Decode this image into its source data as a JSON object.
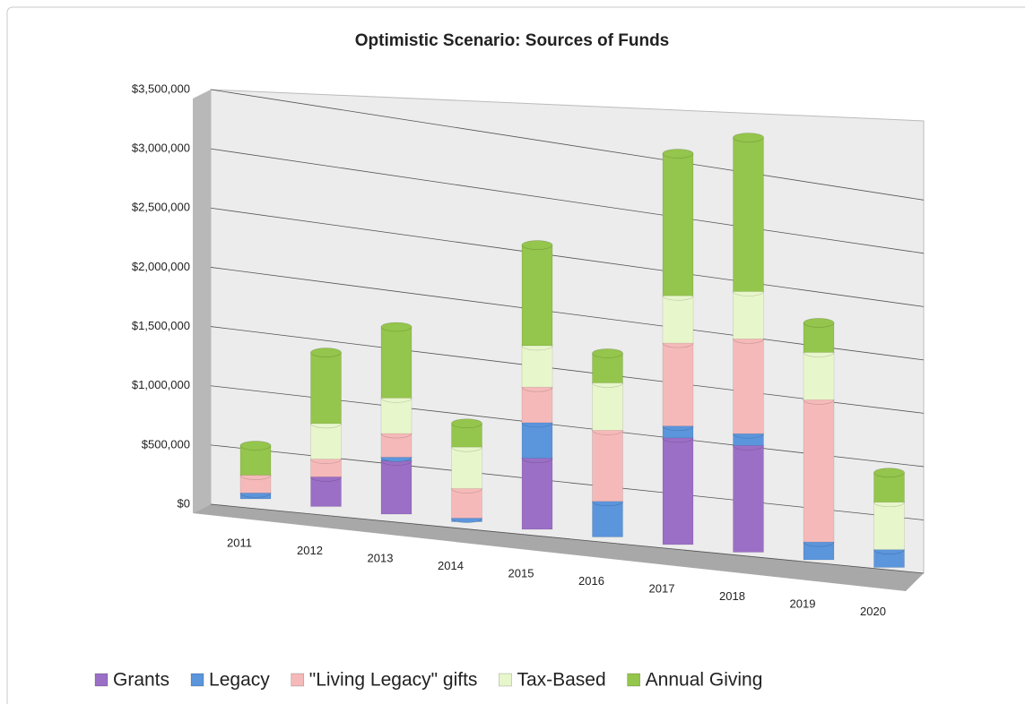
{
  "chart_data": {
    "type": "bar",
    "stacked": true,
    "title": "Optimistic Scenario:  Sources of Funds",
    "categories": [
      "2011",
      "2012",
      "2013",
      "2014",
      "2015",
      "2016",
      "2017",
      "2018",
      "2019",
      "2020"
    ],
    "series": [
      {
        "name": "Grants",
        "color": "#9b6fc6",
        "values": [
          0,
          250000,
          450000,
          0,
          600000,
          0,
          900000,
          900000,
          0,
          0
        ]
      },
      {
        "name": "Legacy",
        "color": "#5b95dc",
        "values": [
          50000,
          0,
          30000,
          30000,
          300000,
          300000,
          100000,
          100000,
          150000,
          150000
        ]
      },
      {
        "name": "\"Living Legacy\" gifts",
        "color": "#f6b9b9",
        "values": [
          150000,
          150000,
          200000,
          250000,
          300000,
          600000,
          700000,
          800000,
          1200000,
          0
        ]
      },
      {
        "name": "Tax-Based",
        "color": "#e8f6cc",
        "values": [
          0,
          300000,
          300000,
          350000,
          350000,
          400000,
          400000,
          400000,
          400000,
          400000
        ]
      },
      {
        "name": "Annual Giving",
        "color": "#94c54c",
        "values": [
          250000,
          600000,
          600000,
          200000,
          850000,
          250000,
          1200000,
          1300000,
          250000,
          250000
        ]
      }
    ],
    "ylim": [
      0,
      3500000
    ],
    "yticks": [
      {
        "value": 0,
        "label": "$0"
      },
      {
        "value": 500000,
        "label": "$500,000"
      },
      {
        "value": 1000000,
        "label": "$1,000,000"
      },
      {
        "value": 1500000,
        "label": "$1,500,000"
      },
      {
        "value": 2000000,
        "label": "$2,000,000"
      },
      {
        "value": 2500000,
        "label": "$2,500,000"
      },
      {
        "value": 3000000,
        "label": "$3,000,000"
      },
      {
        "value": 3500000,
        "label": "$3,500,000"
      }
    ],
    "grid": true,
    "legend": "bottom"
  }
}
